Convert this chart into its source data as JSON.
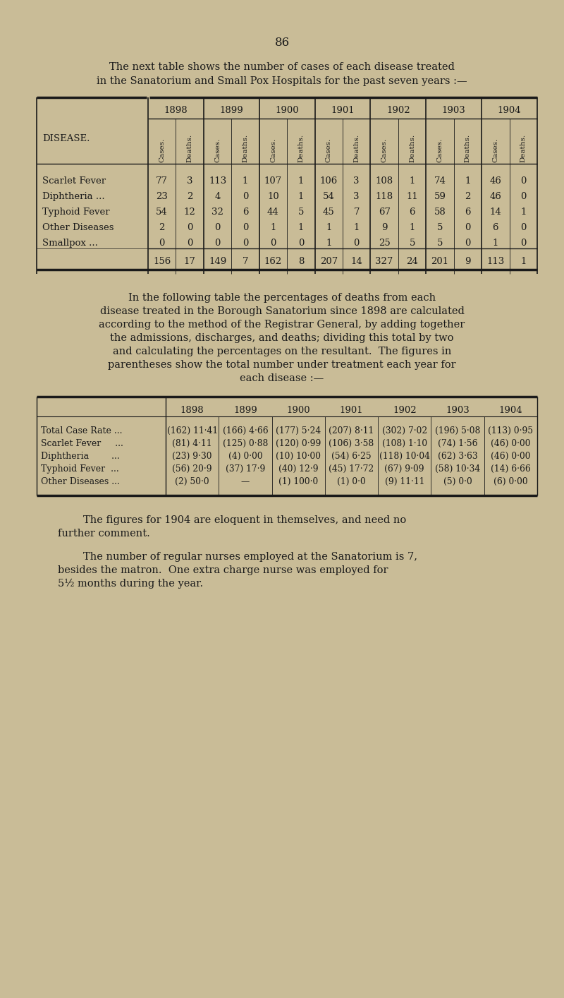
{
  "bg_color": "#c9bc97",
  "text_color": "#1a1a1a",
  "page_number": "86",
  "intro_text1": "The next table shows the number of cases of each disease treated",
  "intro_text2": "in the Sanatorium and Small Pox Hospitals for the past seven years :—",
  "table1": {
    "years": [
      "1898",
      "1899",
      "1900",
      "1901",
      "1902",
      "1903",
      "1904"
    ],
    "col_headers": [
      "Cases.",
      "Deaths.",
      "Cases.",
      "Deaths.",
      "Cases.",
      "Deaths.",
      "Cases.",
      "Deaths.",
      "Cases.",
      "Deaths.",
      "Cases.",
      "Deaths.",
      "Cases.",
      "Deaths."
    ],
    "disease_label": "DISEASE.",
    "rows": [
      {
        "name": "Scarlet Fever",
        "suffix": "...",
        "values": [
          "77",
          "3",
          "113",
          "1",
          "107",
          "1",
          "106",
          "3",
          "108",
          "1",
          "74",
          "1",
          "46",
          "0"
        ]
      },
      {
        "name": "Diphtheria ...",
        "suffix": "...",
        "values": [
          "23",
          "2",
          "4",
          "0",
          "10",
          "1",
          "54",
          "3",
          "118",
          "11",
          "59",
          "2",
          "46",
          "0"
        ]
      },
      {
        "name": "Typhoid Fever",
        "suffix": ".",
        "values": [
          "54",
          "12",
          "32",
          "6",
          "44",
          "5",
          "45",
          "7",
          "67",
          "6",
          "58",
          "6",
          "14",
          "1"
        ]
      },
      {
        "name": "Other Diseases",
        "suffix": "...",
        "values": [
          "2",
          "0",
          "0",
          "0",
          "1",
          "1",
          "1",
          "1",
          "9",
          "1",
          "5",
          "0",
          "6",
          "0"
        ]
      },
      {
        "name": "Smallpox ...",
        "suffix": "",
        "values": [
          "0",
          "0",
          "0",
          "0",
          "0",
          "0",
          "1",
          "0",
          "25",
          "5",
          "5",
          "0",
          "1",
          "0"
        ]
      }
    ],
    "totals": [
      "156",
      "17",
      "149",
      "7",
      "162",
      "8",
      "207",
      "14",
      "327",
      "24",
      "201",
      "9",
      "113",
      "1"
    ]
  },
  "middle_text": [
    "In the following table the percentages of deaths from each",
    "disease treated in the Borough Sanatorium since 1898 are calculated",
    "according to the method of the Registrar General, by adding together",
    "the admissions, discharges, and deaths; dividing this total by two",
    "and calculating the percentages on the resultant.  The figures in",
    "parentheses show the total number under treatment each year for",
    "each disease :—"
  ],
  "table2": {
    "years": [
      "1898",
      "1899",
      "1900",
      "1901",
      "1902",
      "1903",
      "1904"
    ],
    "rows": [
      {
        "name": "Total Case Rate ...",
        "values": [
          "(162) 11·41",
          "(166) 4·66",
          "(177) 5·24",
          "(207) 8·11",
          "(302) 7·02",
          "(196) 5·08",
          "(113) 0·95"
        ]
      },
      {
        "name": "Scarlet Fever     ...",
        "values": [
          "(81) 4·11",
          "(125) 0·88",
          "(120) 0·99",
          "(106) 3·58",
          "(108) 1·10",
          "(74) 1·56",
          "(46) 0·00"
        ]
      },
      {
        "name": "Diphtheria        ...",
        "values": [
          "(23) 9·30",
          "(4) 0·00",
          "(10) 10·00",
          "(54) 6·25",
          "(118) 10·04",
          "(62) 3·63",
          "(46) 0·00"
        ]
      },
      {
        "name": "Typhoid Fever  ...",
        "values": [
          "(56) 20·9",
          "(37) 17·9",
          "(40) 12·9",
          "(45) 17·72",
          "(67) 9·09",
          "(58) 10·34",
          "(14) 6·66"
        ]
      },
      {
        "name": "Other Diseases ...",
        "values": [
          "(2) 50·0",
          "—",
          "(1) 100·0",
          "(1) 0·0",
          "(9) 11·11",
          "(5) 0·0",
          "(6) 0·00"
        ]
      }
    ]
  },
  "footer_para1_line1": "The figures for 1904 are eloquent in themselves, and need no",
  "footer_para1_line2": "further comment.",
  "footer_para2_line1": "The number of regular nurses employed at the Sanatorium is 7,",
  "footer_para2_line2": "besides the matron.  One extra charge nurse was employed for",
  "footer_para2_line3": "5½ months during the year."
}
